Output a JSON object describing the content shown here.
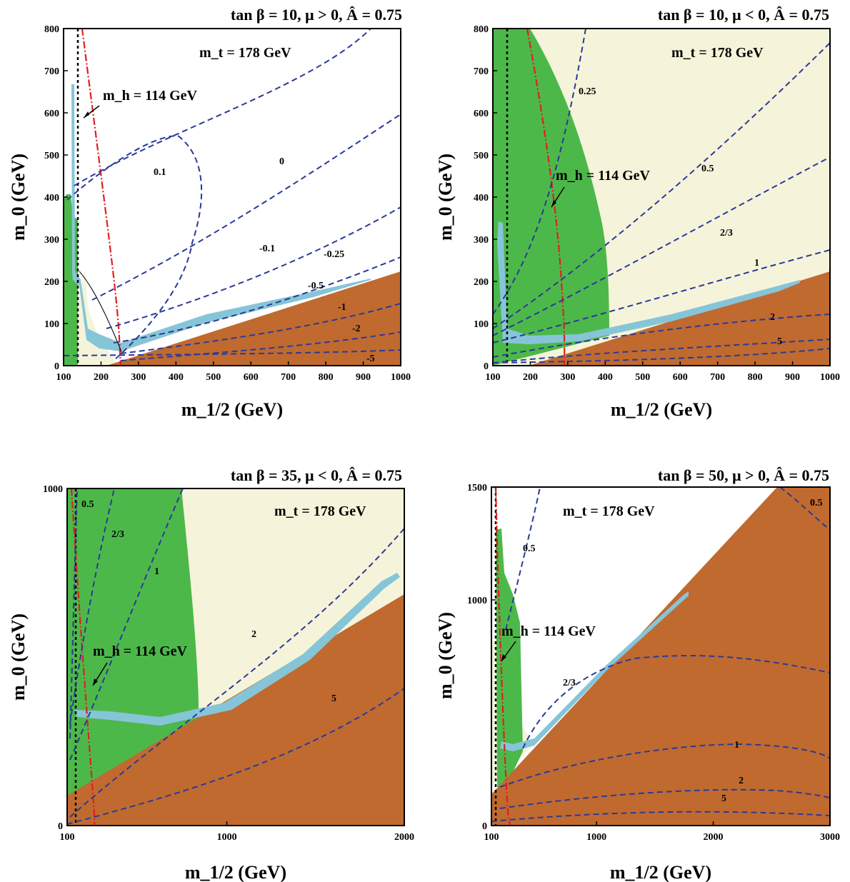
{
  "colors": {
    "excluded_brown": "#c06a30",
    "bsg_green": "#4db84a",
    "g2_yellow": "#f5f4da",
    "relic_lightblue": "#86c5d8",
    "contour_blue": "#2a3a98",
    "higgs_red": "#e0201e",
    "chargino_black": "#000000"
  },
  "chart_data": [
    {
      "type": "contour",
      "title": "tan β = 10, μ > 0, Â = 0.75",
      "annotation": "m_t = 178 GeV",
      "higgs_label": "m_h = 114 GeV",
      "xlabel": "m_1/2 (GeV)",
      "ylabel": "m_0 (GeV)",
      "xlim": [
        100,
        1000
      ],
      "ylim": [
        0,
        800
      ],
      "xticks": [
        "100",
        "200",
        "300",
        "400",
        "500",
        "600",
        "700",
        "800",
        "900",
        "1000"
      ],
      "yticks": [
        "0",
        "100",
        "200",
        "300",
        "400",
        "500",
        "600",
        "700",
        "800"
      ],
      "contour_labels": [
        "0.1",
        "0",
        "-0.1",
        "-0.25",
        "-0.5",
        "-1",
        "-2",
        "-5"
      ]
    },
    {
      "type": "contour",
      "title": "tan β = 10, μ < 0, Â = 0.75",
      "annotation": "m_t = 178 GeV",
      "higgs_label": "m_h = 114 GeV",
      "xlabel": "m_1/2 (GeV)",
      "ylabel": "m_0 (GeV)",
      "xlim": [
        100,
        1000
      ],
      "ylim": [
        0,
        800
      ],
      "xticks": [
        "100",
        "200",
        "300",
        "400",
        "500",
        "600",
        "700",
        "800",
        "900",
        "1000"
      ],
      "yticks": [
        "0",
        "100",
        "200",
        "300",
        "400",
        "500",
        "600",
        "700",
        "800"
      ],
      "contour_labels": [
        "0.25",
        "0.5",
        "2/3",
        "1",
        "2",
        "5"
      ]
    },
    {
      "type": "contour",
      "title": "tan β = 35, μ < 0, Â = 0.75",
      "annotation": "m_t = 178 GeV",
      "higgs_label": "m_h = 114 GeV",
      "xlabel": "m_1/2 (GeV)",
      "ylabel": "m_0 (GeV)",
      "xlim": [
        100,
        2000
      ],
      "ylim": [
        0,
        1000
      ],
      "xticks": [
        "100",
        "1000",
        "2000"
      ],
      "yticks": [
        "0",
        "1000"
      ],
      "contour_labels": [
        "0.5",
        "2/3",
        "1",
        "2",
        "5"
      ]
    },
    {
      "type": "contour",
      "title": "tan β = 50, μ > 0, Â = 0.75",
      "annotation": "m_t = 178 GeV",
      "higgs_label": "m_h = 114 GeV",
      "xlabel": "m_1/2 (GeV)",
      "ylabel": "m_0 (GeV)",
      "xlim": [
        100,
        3000
      ],
      "ylim": [
        0,
        1500
      ],
      "xticks": [
        "100",
        "1000",
        "2000",
        "3000"
      ],
      "yticks": [
        "0",
        "1000",
        "1500"
      ],
      "contour_labels": [
        "0.5",
        "2/3",
        "1",
        "2",
        "5"
      ]
    }
  ]
}
